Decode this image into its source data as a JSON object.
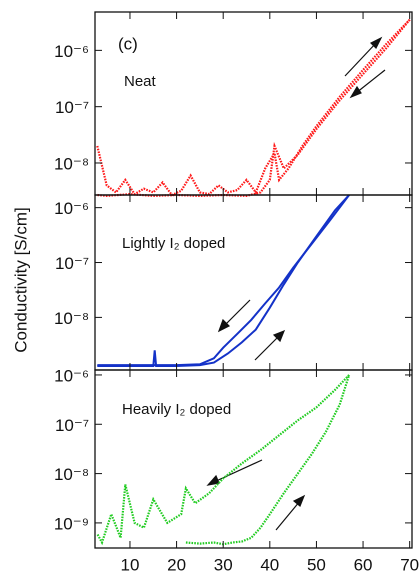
{
  "y_label": "Conductivity [S/cm]",
  "chart_data": [
    {
      "type": "line",
      "log_y": true,
      "xlim": [
        2.5,
        70.5
      ],
      "ylim": [
        2.7e-09,
        4.8e-06
      ],
      "yticks": [
        {
          "value": 1e-06,
          "label": "10⁻⁶"
        },
        {
          "value": 1e-07,
          "label": "10⁻⁷"
        },
        {
          "value": 1e-08,
          "label": "10⁻⁸"
        }
      ],
      "annotations": [
        "(c)",
        "Neat"
      ],
      "series": [
        {
          "color": "#ff1a1a",
          "line_style": "dotted",
          "x": [
            3,
            5,
            7,
            9,
            11,
            13,
            15,
            17,
            19,
            21,
            23,
            25,
            27,
            29,
            31,
            33,
            35,
            37,
            39,
            41,
            42,
            44,
            47,
            50,
            55,
            60,
            65,
            70
          ],
          "values": [
            2e-08,
            4e-09,
            3e-09,
            5e-09,
            2.8e-09,
            3.5e-09,
            3e-09,
            4.5e-09,
            2.7e-09,
            3.2e-09,
            6e-09,
            3e-09,
            2.8e-09,
            4e-09,
            3e-09,
            3.3e-09,
            5e-09,
            3e-09,
            8e-09,
            1.5e-08,
            5e-09,
            8e-09,
            2e-08,
            4.5e-08,
            1.5e-07,
            4.5e-07,
            1.3e-06,
            3.5e-06
          ]
        },
        {
          "color": "#ff1a1a",
          "line_style": "dotted",
          "x": [
            70,
            65,
            60,
            55,
            50,
            46,
            43,
            41,
            40,
            38,
            35,
            30,
            25,
            20,
            15,
            10,
            5,
            3
          ],
          "values": [
            3.5e-06,
            1.1e-06,
            3.8e-07,
            1.3e-07,
            4e-08,
            1.4e-08,
            8e-09,
            2e-08,
            5e-09,
            3e-09,
            2.6e-09,
            2.7e-09,
            2.6e-09,
            2.7e-09,
            2.6e-09,
            2.8e-09,
            2.6e-09,
            2.7e-09
          ]
        }
      ]
    },
    {
      "type": "line",
      "log_y": true,
      "xlim": [
        2.5,
        70.5
      ],
      "ylim": [
        1.1e-09,
        1.7e-06
      ],
      "yticks": [
        {
          "value": 1e-06,
          "label": "10⁻⁶"
        },
        {
          "value": 1e-07,
          "label": "10⁻⁷"
        },
        {
          "value": 1e-08,
          "label": "10⁻⁸"
        }
      ],
      "annotations": [
        "Lightly I₂ doped"
      ],
      "series": [
        {
          "color": "#1432c8",
          "line_style": "solid",
          "x": [
            3,
            10,
            15,
            15.3,
            15.6,
            20,
            25,
            28,
            31,
            34,
            37,
            40,
            43,
            46,
            50,
            54,
            57
          ],
          "values": [
            1.3e-09,
            1.3e-09,
            1.3e-09,
            2.5e-09,
            1.3e-09,
            1.3e-09,
            1.35e-09,
            1.5e-09,
            2.2e-09,
            3.5e-09,
            6e-09,
            1.5e-08,
            4e-08,
            1e-07,
            3e-07,
            9e-07,
            1.7e-06
          ]
        },
        {
          "color": "#1432c8",
          "line_style": "solid",
          "x": [
            57,
            53,
            49,
            45,
            42,
            39,
            36,
            33,
            30,
            28,
            25,
            20,
            10,
            3
          ],
          "values": [
            1.7e-06,
            6e-07,
            2.2e-07,
            8e-08,
            3.5e-08,
            1.8e-08,
            9e-09,
            5e-09,
            2.8e-09,
            1.8e-09,
            1.4e-09,
            1.35e-09,
            1.35e-09,
            1.35e-09
          ]
        }
      ]
    },
    {
      "type": "line",
      "log_y": true,
      "xlim": [
        2.5,
        70.5
      ],
      "ylim": [
        3.1e-10,
        1.26e-06
      ],
      "xticks": [
        10,
        20,
        30,
        40,
        50,
        60,
        70
      ],
      "yticks": [
        {
          "value": 1e-06,
          "label": "10⁻⁶"
        },
        {
          "value": 1e-07,
          "label": "10⁻⁷"
        },
        {
          "value": 1e-08,
          "label": "10⁻⁸"
        },
        {
          "value": 1e-09,
          "label": "10⁻⁹"
        }
      ],
      "annotations": [
        "Heavily I₂ doped"
      ],
      "series": [
        {
          "color": "#22cc22",
          "line_style": "dotted",
          "x": [
            22,
            25,
            28,
            30,
            32,
            34,
            36,
            38,
            40,
            43,
            46,
            49,
            52,
            55,
            57
          ],
          "values": [
            4e-10,
            3.8e-10,
            4e-10,
            3.7e-10,
            4e-10,
            4.2e-10,
            5e-10,
            8e-10,
            1.5e-09,
            4e-09,
            1e-08,
            2.5e-08,
            7e-08,
            2.5e-07,
            1e-06
          ]
        },
        {
          "color": "#22cc22",
          "line_style": "dotted",
          "x": [
            57,
            54,
            50,
            46,
            42,
            38,
            34,
            30,
            27,
            24,
            22,
            21,
            18,
            15,
            13,
            11,
            9,
            8,
            6,
            4,
            3
          ],
          "values": [
            1e-06,
            5e-07,
            2.2e-07,
            1.2e-07,
            6e-08,
            3e-08,
            1.6e-08,
            8e-09,
            4e-09,
            2.5e-09,
            5e-09,
            1.5e-09,
            1e-09,
            3e-09,
            8e-10,
            1e-09,
            6e-09,
            5e-10,
            1.5e-09,
            4e-10,
            6e-10
          ]
        }
      ]
    }
  ]
}
